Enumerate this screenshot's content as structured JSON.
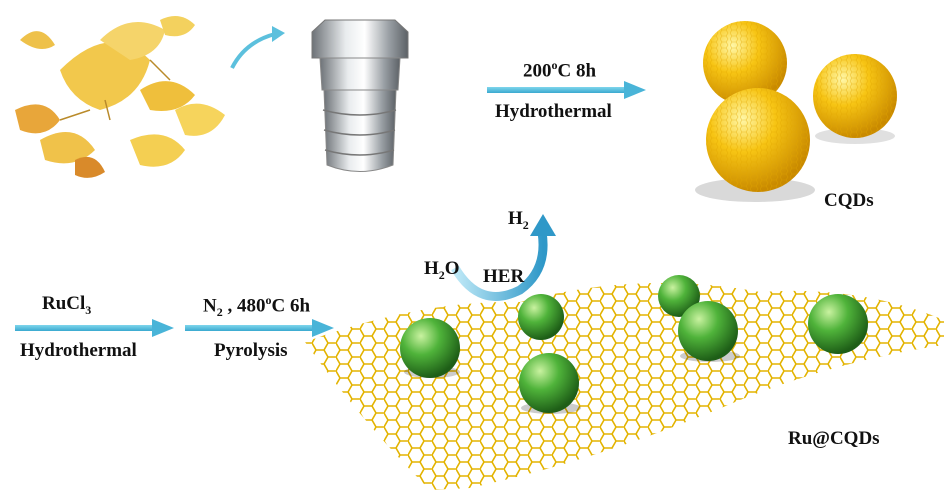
{
  "step1": {
    "top": "200",
    "top_sup": "o",
    "top_rest": "C 8h",
    "bottom": "Hydrothermal"
  },
  "cqds_label": "CQDs",
  "step2": {
    "top_main": "RuCl",
    "top_sub": "3",
    "bottom": "Hydrothermal"
  },
  "step3": {
    "n": "N",
    "n_sub": "2",
    "rest": " , 480",
    "sup": "o",
    "rest2": "C 6h",
    "bottom": "Pyrolysis"
  },
  "her": {
    "h2_main": "H",
    "h2_sub": "2",
    "h2o_main": "H",
    "h2o_sub": "2",
    "h2o_o": "O",
    "label": "HER"
  },
  "product_label": "Ru@CQDs",
  "colors": {
    "arrow": "#49b4d8",
    "cqd_yellow": "#f5c21b",
    "ru_green": "#3a9a2e",
    "lattice": "#e6b800",
    "autoclave": "#b8bcc0"
  }
}
